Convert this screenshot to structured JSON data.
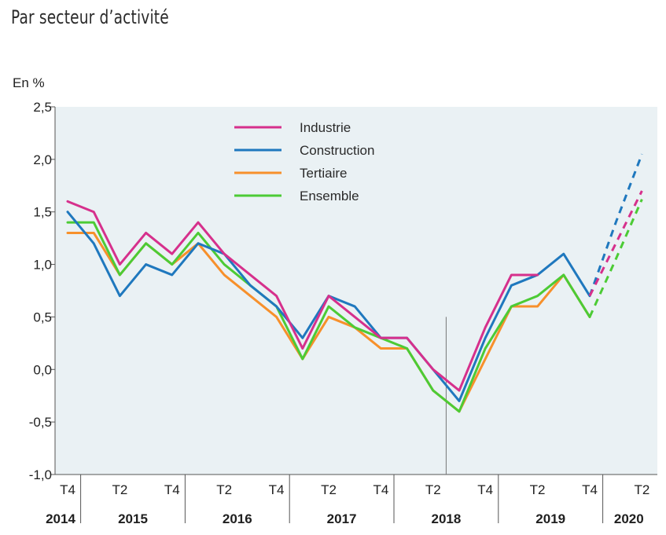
{
  "page_title": "Par secteur d’activité",
  "chart_data": {
    "type": "line",
    "ylabel": "En %",
    "ylim": [
      -1.0,
      2.5
    ],
    "y_ticks": [
      2.5,
      2.0,
      1.5,
      1.0,
      0.5,
      0.0,
      -0.5,
      -1.0
    ],
    "y_tick_labels": [
      "2,5",
      "2,0",
      "1,5",
      "1,0",
      "0,5",
      "0,0",
      "-0,5",
      "-1,0"
    ],
    "x_quarter_labels": [
      {
        "i": 0,
        "label": "T4"
      },
      {
        "i": 2,
        "label": "T2"
      },
      {
        "i": 4,
        "label": "T4"
      },
      {
        "i": 6,
        "label": "T2"
      },
      {
        "i": 8,
        "label": "T4"
      },
      {
        "i": 10,
        "label": "T2"
      },
      {
        "i": 12,
        "label": "T4"
      },
      {
        "i": 14,
        "label": "T2"
      },
      {
        "i": 16,
        "label": "T4"
      },
      {
        "i": 18,
        "label": "T2"
      },
      {
        "i": 20,
        "label": "T4"
      },
      {
        "i": 22,
        "label": "T2"
      }
    ],
    "years": [
      {
        "label": "2014",
        "start": 0,
        "end": 0
      },
      {
        "label": "2015",
        "start": 1,
        "end": 4
      },
      {
        "label": "2016",
        "start": 5,
        "end": 8
      },
      {
        "label": "2017",
        "start": 9,
        "end": 12
      },
      {
        "label": "2018",
        "start": 13,
        "end": 16
      },
      {
        "label": "2019",
        "start": 17,
        "end": 20
      },
      {
        "label": "2020",
        "start": 21,
        "end": 22
      }
    ],
    "marker_index": 14.5,
    "forecast_start_index": 20,
    "series": [
      {
        "name": "Industrie",
        "color": "#d6308c",
        "values": [
          1.6,
          1.5,
          1.0,
          1.3,
          1.1,
          1.4,
          1.1,
          0.9,
          0.7,
          0.2,
          0.7,
          0.5,
          0.3,
          0.3,
          0.0,
          -0.2,
          0.4,
          0.9,
          0.9,
          null,
          null
        ],
        "forecast": [
          0.7,
          1.2,
          1.7
        ]
      },
      {
        "name": "Construction",
        "color": "#1f78be",
        "values": [
          1.5,
          1.2,
          0.7,
          1.0,
          0.9,
          1.2,
          1.1,
          0.8,
          0.6,
          0.3,
          0.7,
          0.6,
          0.3,
          0.3,
          0.0,
          -0.3,
          0.3,
          0.8,
          0.9,
          1.1,
          0.7
        ],
        "forecast": [
          0.7,
          1.4,
          2.05
        ]
      },
      {
        "name": "Tertiaire",
        "color": "#f7902b",
        "values": [
          1.3,
          1.3,
          0.9,
          1.2,
          1.0,
          1.2,
          0.9,
          0.7,
          0.5,
          0.1,
          0.5,
          0.4,
          0.2,
          0.2,
          -0.2,
          -0.4,
          0.1,
          0.6,
          0.6,
          0.9,
          0.5
        ],
        "forecast": null
      },
      {
        "name": "Ensemble",
        "color": "#4ccb35",
        "values": [
          1.4,
          1.4,
          0.9,
          1.2,
          1.0,
          1.3,
          1.0,
          0.8,
          0.6,
          0.1,
          0.6,
          0.4,
          0.3,
          0.2,
          -0.2,
          -0.4,
          0.2,
          0.6,
          0.7,
          0.9,
          0.5
        ],
        "forecast": [
          0.5,
          1.05,
          1.62
        ]
      }
    ],
    "legend": [
      "Industrie",
      "Construction",
      "Tertiaire",
      "Ensemble"
    ],
    "grid": false
  }
}
